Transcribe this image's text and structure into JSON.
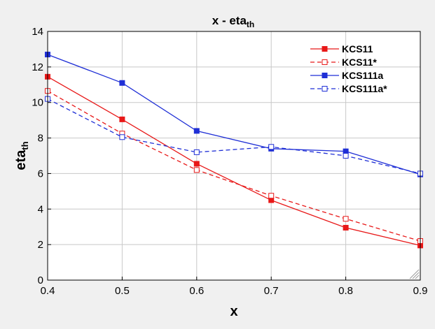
{
  "chart_data": {
    "type": "line",
    "title": "x - eta",
    "title_sub": "th",
    "xlabel": "x",
    "ylabel": "eta",
    "ylabel_sub": "th",
    "xlim": [
      0.4,
      0.9
    ],
    "ylim": [
      0,
      14
    ],
    "xticks": [
      "0.4",
      "0.5",
      "0.6",
      "0.7",
      "0.8",
      "0.9"
    ],
    "yticks": [
      "0",
      "2",
      "4",
      "6",
      "8",
      "10",
      "12",
      "14"
    ],
    "grid": true,
    "legend_position": "top-right",
    "x": [
      0.4,
      0.5,
      0.6,
      0.7,
      0.8,
      0.9
    ],
    "series": [
      {
        "name": "KCS11",
        "values": [
          11.45,
          9.05,
          6.55,
          4.5,
          2.95,
          1.95
        ],
        "color": "#e81818",
        "line": "solid",
        "marker": "filled-square"
      },
      {
        "name": "KCS11*",
        "values": [
          10.65,
          8.25,
          6.2,
          4.75,
          3.45,
          2.2
        ],
        "color": "#e81818",
        "line": "dashed",
        "marker": "open-square"
      },
      {
        "name": "KCS111a",
        "values": [
          12.7,
          11.1,
          8.4,
          7.4,
          7.25,
          5.95
        ],
        "color": "#1f2fd6",
        "line": "solid",
        "marker": "filled-square"
      },
      {
        "name": "KCS111a*",
        "values": [
          10.2,
          8.05,
          7.2,
          7.5,
          7.0,
          6.0
        ],
        "color": "#1f2fd6",
        "line": "dashed",
        "marker": "open-square"
      }
    ]
  }
}
